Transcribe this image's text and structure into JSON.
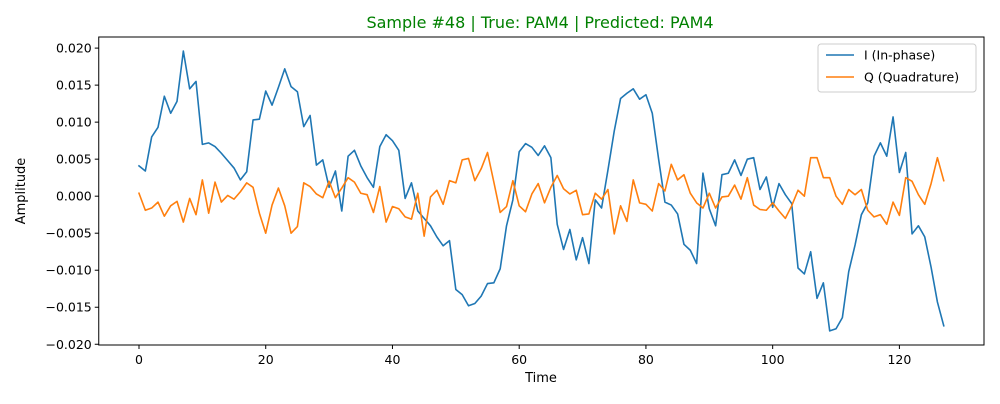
{
  "chart_data": {
    "type": "line",
    "title": "Sample #48 | True: PAM4 | Predicted: PAM4",
    "title_color": "#008000",
    "xlabel": "Time",
    "ylabel": "Amplitude",
    "xlim": [
      -6.35,
      133.35
    ],
    "ylim": [
      -0.0201,
      0.0215
    ],
    "xticks": [
      0,
      20,
      40,
      60,
      80,
      100,
      120
    ],
    "yticks": [
      -0.02,
      -0.015,
      -0.01,
      -0.005,
      0.0,
      0.005,
      0.01,
      0.015,
      0.02
    ],
    "xtick_labels": [
      "0",
      "20",
      "40",
      "60",
      "80",
      "100",
      "120"
    ],
    "ytick_labels": [
      "−0.020",
      "−0.015",
      "−0.010",
      "−0.005",
      "0.000",
      "0.005",
      "0.010",
      "0.015",
      "0.020"
    ],
    "grid": false,
    "legend_position": "upper right",
    "series": [
      {
        "name": "I (In-phase)",
        "color": "#1f77b4",
        "values": [
          0.0041,
          0.0034,
          0.008,
          0.0093,
          0.0135,
          0.0112,
          0.0128,
          0.0196,
          0.0145,
          0.0155,
          0.007,
          0.0072,
          0.0067,
          0.0058,
          0.0048,
          0.0038,
          0.0022,
          0.0033,
          0.0103,
          0.0104,
          0.0142,
          0.0123,
          0.0147,
          0.0172,
          0.0148,
          0.0141,
          0.0094,
          0.0109,
          0.0042,
          0.0049,
          0.0012,
          0.0034,
          -0.002,
          0.0054,
          0.0062,
          0.0041,
          0.0025,
          0.0012,
          0.0067,
          0.0083,
          0.0075,
          0.0062,
          -0.0003,
          0.0018,
          -0.002,
          -0.003,
          -0.004,
          -0.0055,
          -0.0067,
          -0.006,
          -0.0126,
          -0.0133,
          -0.0148,
          -0.0145,
          -0.0135,
          -0.0118,
          -0.0117,
          -0.0098,
          -0.004,
          -0.0005,
          0.006,
          0.0071,
          0.0066,
          0.0055,
          0.0068,
          0.0052,
          -0.0038,
          -0.0072,
          -0.0045,
          -0.0086,
          -0.0056,
          -0.0091,
          -0.0005,
          -0.0016,
          0.0035,
          0.0088,
          0.0132,
          0.0139,
          0.0145,
          0.0131,
          0.0137,
          0.0112,
          0.005,
          -0.0008,
          -0.0012,
          -0.0024,
          -0.0065,
          -0.0073,
          -0.0091,
          0.0031,
          -0.0017,
          -0.004,
          0.0029,
          0.0031,
          0.0049,
          0.0028,
          0.005,
          0.0052,
          0.0009,
          0.0026,
          -0.0015,
          0.0017,
          0.0002,
          -0.001,
          -0.0097,
          -0.0105,
          -0.0075,
          -0.0138,
          -0.0117,
          -0.0182,
          -0.0179,
          -0.0164,
          -0.0102,
          -0.0066,
          -0.0025,
          -0.0009,
          0.0054,
          0.0072,
          0.0054,
          0.0107,
          0.0032,
          0.0059,
          -0.0051,
          -0.004,
          -0.0055,
          -0.0096,
          -0.0143,
          -0.0175
        ]
      },
      {
        "name": "Q (Quadrature)",
        "color": "#ff7f0e",
        "values": [
          0.0004,
          -0.0019,
          -0.0016,
          -0.0008,
          -0.0027,
          -0.0013,
          -0.0007,
          -0.0035,
          -0.0003,
          -0.0025,
          0.0022,
          -0.0023,
          0.0019,
          -0.0008,
          0.0001,
          -0.0004,
          0.0006,
          0.0018,
          0.0012,
          -0.0023,
          -0.005,
          -0.0012,
          0.0011,
          -0.0013,
          -0.005,
          -0.0041,
          0.0018,
          0.0013,
          0.0003,
          -0.0002,
          0.002,
          -0.0002,
          0.0011,
          0.0025,
          0.0019,
          0.0004,
          0.0002,
          -0.0022,
          0.0013,
          -0.0035,
          -0.0014,
          -0.0017,
          -0.0028,
          -0.0031,
          0.0004,
          -0.0054,
          -0.0001,
          0.0008,
          -0.0011,
          0.0021,
          0.0018,
          0.0049,
          0.0051,
          0.0021,
          0.0037,
          0.0059,
          0.0019,
          -0.0022,
          -0.0014,
          0.0021,
          -0.0013,
          -0.0021,
          0.0003,
          0.0017,
          -0.0009,
          0.0012,
          0.0028,
          0.001,
          0.0003,
          0.0008,
          -0.0025,
          -0.0024,
          0.0004,
          -0.0004,
          0.0009,
          -0.0051,
          -0.0013,
          -0.0034,
          0.0022,
          -0.0009,
          -0.0011,
          -0.002,
          0.0017,
          0.0007,
          0.0043,
          0.0022,
          0.0029,
          0.0004,
          -0.0009,
          -0.0016,
          0.0004,
          -0.0016,
          -0.0001,
          0.0,
          0.0015,
          -0.0004,
          0.0025,
          -0.0012,
          -0.0018,
          -0.0019,
          -0.0009,
          -0.002,
          -0.003,
          -0.0013,
          0.0008,
          0.0,
          0.0052,
          0.0052,
          0.0025,
          0.0025,
          0.0,
          -0.0011,
          0.0009,
          0.0002,
          0.0009,
          -0.0019,
          -0.0028,
          -0.0025,
          -0.0038,
          -0.0008,
          -0.0026,
          0.0025,
          0.002,
          0.0002,
          -0.0011,
          0.0017,
          0.0052,
          0.0021
        ]
      }
    ]
  }
}
